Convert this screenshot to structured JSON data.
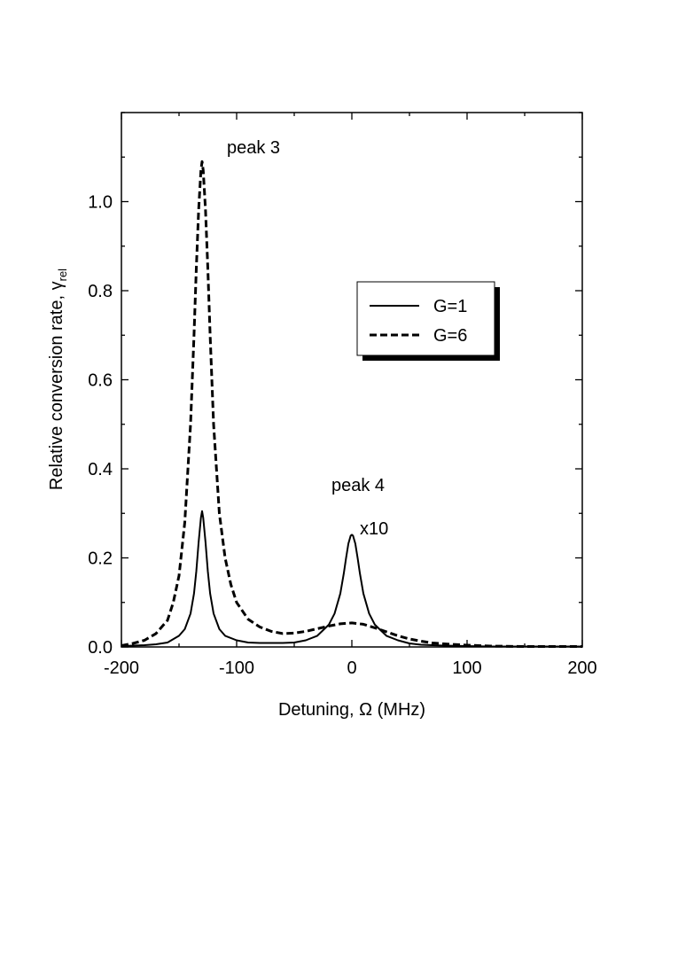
{
  "chart_data": {
    "type": "line",
    "xlabel": "Detuning, Ω (MHz)",
    "ylabel_main": "Relative conversion rate, γ",
    "ylabel_sub": "rel",
    "xlim": [
      -200,
      200
    ],
    "ylim": [
      0,
      1.2
    ],
    "x_ticks": [
      -200,
      -100,
      0,
      100,
      200
    ],
    "x_tick_labels": [
      "-200",
      "-100",
      "0",
      "100",
      "200"
    ],
    "y_ticks": [
      0,
      0.2,
      0.4,
      0.6,
      0.8,
      1.0
    ],
    "y_tick_labels": [
      "0.0",
      "0.2",
      "0.4",
      "0.6",
      "0.8",
      "1.0"
    ],
    "grid": false,
    "legend_position": "center-right",
    "series": [
      {
        "name": "G=1",
        "style": "solid",
        "color": "#000000",
        "x": [
          -200,
          -190,
          -180,
          -170,
          -160,
          -150,
          -145,
          -140,
          -137,
          -135,
          -133,
          -131,
          -130,
          -129,
          -127,
          -125,
          -123,
          -120,
          -115,
          -110,
          -100,
          -90,
          -80,
          -70,
          -60,
          -50,
          -40,
          -30,
          -20,
          -15,
          -10,
          -7,
          -5,
          -3,
          -1,
          0,
          1,
          3,
          5,
          7,
          10,
          15,
          20,
          30,
          40,
          50,
          60,
          80,
          100,
          120,
          150,
          200
        ],
        "y": [
          0.002,
          0.003,
          0.004,
          0.006,
          0.01,
          0.025,
          0.04,
          0.075,
          0.12,
          0.17,
          0.235,
          0.29,
          0.305,
          0.29,
          0.235,
          0.17,
          0.12,
          0.075,
          0.04,
          0.025,
          0.015,
          0.01,
          0.009,
          0.009,
          0.009,
          0.01,
          0.015,
          0.025,
          0.05,
          0.075,
          0.12,
          0.165,
          0.2,
          0.232,
          0.25,
          0.252,
          0.25,
          0.232,
          0.2,
          0.165,
          0.12,
          0.075,
          0.05,
          0.025,
          0.015,
          0.008,
          0.005,
          0.003,
          0.002,
          0.001,
          0.001,
          0.001
        ]
      },
      {
        "name": "G=6",
        "style": "dashed",
        "color": "#000000",
        "x": [
          -200,
          -190,
          -180,
          -170,
          -160,
          -155,
          -150,
          -145,
          -140,
          -137,
          -135,
          -133,
          -131,
          -130,
          -129,
          -127,
          -125,
          -123,
          -120,
          -115,
          -110,
          -105,
          -100,
          -90,
          -80,
          -70,
          -60,
          -50,
          -40,
          -30,
          -20,
          -10,
          0,
          10,
          20,
          30,
          40,
          50,
          60,
          70,
          80,
          100,
          120,
          150,
          200
        ],
        "y": [
          0.003,
          0.008,
          0.015,
          0.03,
          0.06,
          0.1,
          0.16,
          0.28,
          0.5,
          0.7,
          0.85,
          0.98,
          1.07,
          1.09,
          1.07,
          0.98,
          0.85,
          0.7,
          0.5,
          0.3,
          0.2,
          0.14,
          0.1,
          0.062,
          0.045,
          0.035,
          0.03,
          0.031,
          0.035,
          0.041,
          0.047,
          0.052,
          0.054,
          0.051,
          0.043,
          0.034,
          0.025,
          0.018,
          0.013,
          0.009,
          0.007,
          0.004,
          0.002,
          0.001,
          0.001
        ]
      }
    ],
    "annotations": [
      {
        "id": "peak3",
        "text": "peak 3"
      },
      {
        "id": "peak4",
        "text": "peak 4"
      },
      {
        "id": "x10",
        "text": "x10"
      }
    ]
  }
}
